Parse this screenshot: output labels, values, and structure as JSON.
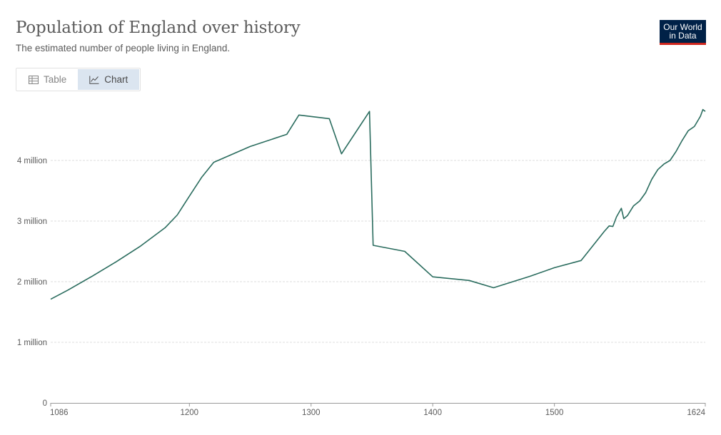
{
  "header": {
    "title": "Population of England over history",
    "subtitle": "The estimated number of people living in England.",
    "logo_line1": "Our World",
    "logo_line2": "in Data"
  },
  "tabs": [
    {
      "label": "Table",
      "icon": "table-icon",
      "active": false
    },
    {
      "label": "Chart",
      "icon": "line-chart-icon",
      "active": true
    }
  ],
  "colors": {
    "line": "#2a6c5e",
    "logo_bg": "#002147",
    "logo_accent": "#ce261e",
    "active_tab": "#dbe5f0"
  },
  "chart_data": {
    "type": "line",
    "title": "Population of England over history",
    "subtitle": "The estimated number of people living in England.",
    "xlim": [
      1086,
      1624
    ],
    "ylim": [
      0,
      5000000
    ],
    "x_ticks": [
      1086,
      1200,
      1300,
      1400,
      1500,
      1624
    ],
    "y_ticks": [
      {
        "value": 0,
        "label": "0"
      },
      {
        "value": 1000000,
        "label": "1 million"
      },
      {
        "value": 2000000,
        "label": "2 million"
      },
      {
        "value": 3000000,
        "label": "3 million"
      },
      {
        "value": 4000000,
        "label": "4 million"
      }
    ],
    "grid": "horizontal dotted",
    "series": [
      {
        "points": [
          [
            1086,
            1710000
          ],
          [
            1100,
            1860000
          ],
          [
            1120,
            2090000
          ],
          [
            1140,
            2330000
          ],
          [
            1160,
            2590000
          ],
          [
            1180,
            2890000
          ],
          [
            1190,
            3100000
          ],
          [
            1200,
            3410000
          ],
          [
            1210,
            3720000
          ],
          [
            1220,
            3970000
          ],
          [
            1250,
            4230000
          ],
          [
            1280,
            4430000
          ],
          [
            1290,
            4750000
          ],
          [
            1315,
            4690000
          ],
          [
            1325,
            4110000
          ],
          [
            1348,
            4810000
          ],
          [
            1351,
            2600000
          ],
          [
            1377,
            2500000
          ],
          [
            1400,
            2080000
          ],
          [
            1430,
            2020000
          ],
          [
            1450,
            1900000
          ],
          [
            1480,
            2090000
          ],
          [
            1500,
            2230000
          ],
          [
            1522,
            2350000
          ],
          [
            1541,
            2830000
          ],
          [
            1545,
            2920000
          ],
          [
            1548,
            2910000
          ],
          [
            1551,
            3070000
          ],
          [
            1555,
            3210000
          ],
          [
            1557,
            3040000
          ],
          [
            1560,
            3090000
          ],
          [
            1565,
            3250000
          ],
          [
            1570,
            3330000
          ],
          [
            1575,
            3470000
          ],
          [
            1580,
            3690000
          ],
          [
            1585,
            3850000
          ],
          [
            1590,
            3940000
          ],
          [
            1595,
            4000000
          ],
          [
            1600,
            4150000
          ],
          [
            1605,
            4330000
          ],
          [
            1610,
            4490000
          ],
          [
            1615,
            4560000
          ],
          [
            1620,
            4730000
          ],
          [
            1622,
            4840000
          ],
          [
            1624,
            4810000
          ]
        ]
      }
    ]
  }
}
